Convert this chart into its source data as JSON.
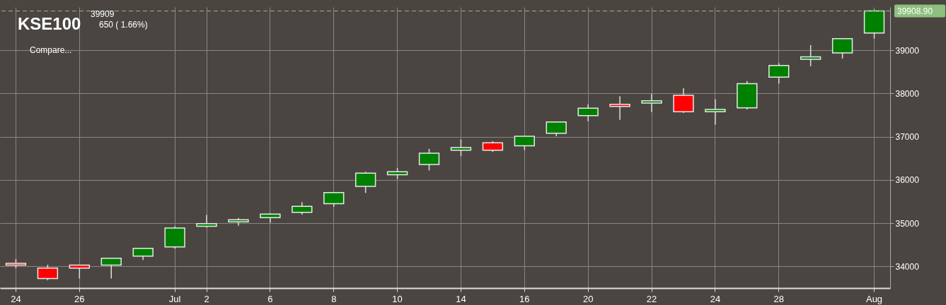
{
  "chart_data": {
    "type": "candlestick",
    "title": "KSE100",
    "subtitle": "39909",
    "annotations": [
      "650 ( 1.66%)",
      "Compare..."
    ],
    "categories": [
      "24",
      null,
      "26",
      null,
      null,
      "Jul",
      "2",
      null,
      "6",
      null,
      "8",
      null,
      "10",
      null,
      "14",
      null,
      "16",
      null,
      "20",
      null,
      "22",
      null,
      "24",
      null,
      "28",
      null,
      null,
      "Aug"
    ],
    "ohlc": [
      [
        34070,
        34170,
        33960,
        34030
      ],
      [
        33960,
        34040,
        33680,
        33720
      ],
      [
        34030,
        34040,
        33720,
        33960
      ],
      [
        34030,
        34190,
        33720,
        34190
      ],
      [
        34240,
        34420,
        34150,
        34420
      ],
      [
        34450,
        34930,
        34410,
        34890
      ],
      [
        34930,
        35190,
        34900,
        34990
      ],
      [
        35030,
        35120,
        34940,
        35080
      ],
      [
        35130,
        35230,
        35010,
        35210
      ],
      [
        35250,
        35490,
        35200,
        35390
      ],
      [
        35450,
        35720,
        35380,
        35710
      ],
      [
        35850,
        36190,
        35700,
        36160
      ],
      [
        36120,
        36280,
        36020,
        36190
      ],
      [
        36360,
        36720,
        36220,
        36620
      ],
      [
        36690,
        36940,
        36550,
        36750
      ],
      [
        36860,
        36900,
        36650,
        36690
      ],
      [
        36790,
        37010,
        36690,
        37010
      ],
      [
        37080,
        37340,
        37010,
        37340
      ],
      [
        37490,
        37750,
        37360,
        37660
      ],
      [
        37750,
        37940,
        37390,
        37700
      ],
      [
        37780,
        37990,
        37570,
        37830
      ],
      [
        37960,
        38120,
        37550,
        37580
      ],
      [
        37580,
        37870,
        37280,
        37630
      ],
      [
        37670,
        38290,
        37630,
        38230
      ],
      [
        38380,
        38700,
        38230,
        38650
      ],
      [
        38790,
        39120,
        38630,
        38850
      ],
      [
        38940,
        39270,
        38810,
        39270
      ],
      [
        39400,
        39940,
        39270,
        39908.9
      ]
    ],
    "colors": [
      "#ff0000",
      "#ff0000",
      "#ff0000",
      "#008000",
      "#008000",
      "#008000",
      "#008000",
      "#008000",
      "#008000",
      "#008000",
      "#008000",
      "#008000",
      "#008000",
      "#008000",
      "#008000",
      "#ff0000",
      "#008000",
      "#008000",
      "#008000",
      "#ff0000",
      "#008000",
      "#ff0000",
      "#008000",
      "#008000",
      "#008000",
      "#008000",
      "#008000",
      "#008000"
    ],
    "ylim": [
      33500,
      40000
    ],
    "yticks": [
      34000,
      35000,
      36000,
      37000,
      38000,
      39000
    ],
    "ref_lines": [
      {
        "axis": "y",
        "value": 39908.9,
        "label": "39908.90",
        "color": "#8fbf7f",
        "line_style": "dashed"
      }
    ],
    "grid": true
  }
}
